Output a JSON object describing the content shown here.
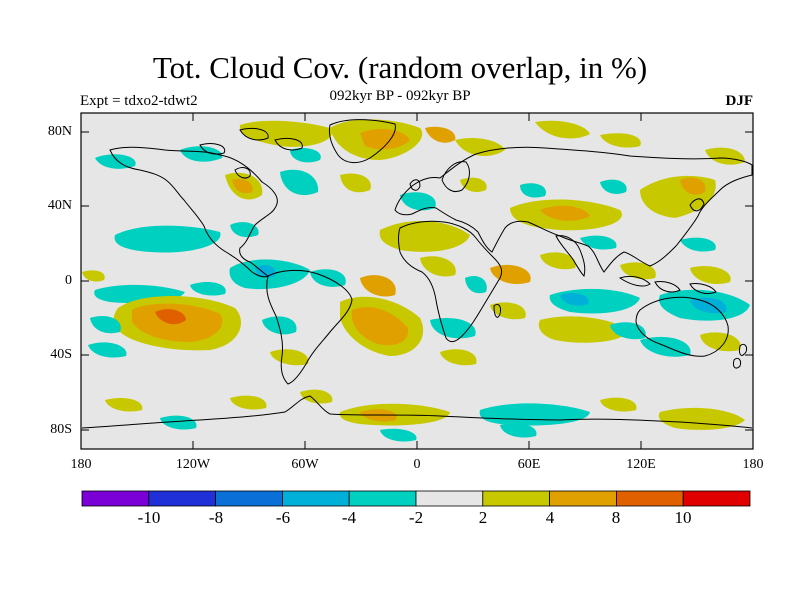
{
  "title": "Tot. Cloud Cov. (random overlap, in %)",
  "subtitle": "092kyr BP - 092kyr BP",
  "left_label": "Expt = tdxo2-tdwt2",
  "right_label": "DJF",
  "map": {
    "lat_ticks": [
      "80N",
      "40N",
      "0",
      "40S",
      "80S"
    ],
    "lon_ticks": [
      "180",
      "120W",
      "60W",
      "0",
      "60E",
      "120E",
      "180"
    ],
    "background_color": "#e6e6e6"
  },
  "colorbar": {
    "colors": [
      "#7b00d8",
      "#2030d8",
      "#0a70d8",
      "#00b0d8",
      "#00d0c0",
      "#e6e6e6",
      "#c8c800",
      "#e0a000",
      "#e06000",
      "#e00000"
    ],
    "labels": [
      "-10",
      "-8",
      "-6",
      "-4",
      "-2",
      "2",
      "4",
      "8",
      "10"
    ]
  }
}
